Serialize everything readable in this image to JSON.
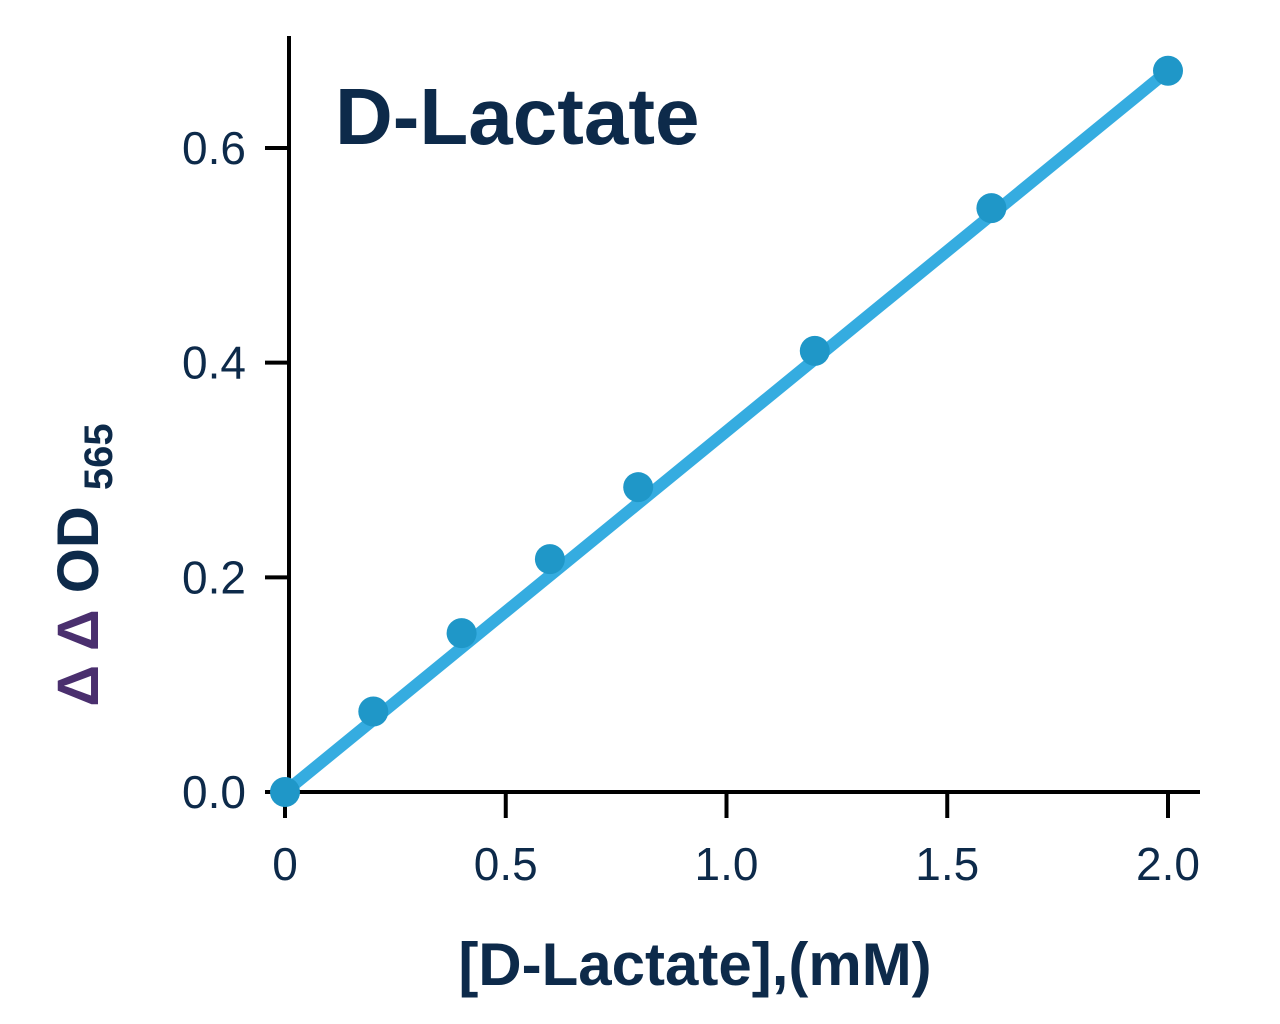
{
  "chart_data": {
    "type": "scatter",
    "title": "D-Lactate",
    "xlabel": "[D-Lactate],(mM)",
    "ylabel": {
      "delta1": "Δ",
      "delta2": "Δ",
      "main": "OD",
      "subscript": "565"
    },
    "xlim": [
      0,
      2.0
    ],
    "ylim": [
      0,
      0.7
    ],
    "x_ticks": [
      {
        "value": 0,
        "label": "0"
      },
      {
        "value": 0.5,
        "label": "0.5"
      },
      {
        "value": 1.0,
        "label": "1.0"
      },
      {
        "value": 1.5,
        "label": "1.5"
      },
      {
        "value": 2.0,
        "label": "2.0"
      }
    ],
    "y_ticks": [
      {
        "value": 0.0,
        "label": "0.0"
      },
      {
        "value": 0.2,
        "label": "0.2"
      },
      {
        "value": 0.4,
        "label": "0.4"
      },
      {
        "value": 0.6,
        "label": "0.6"
      }
    ],
    "series": [
      {
        "x": [
          0,
          0.2,
          0.4,
          0.6,
          0.8,
          1.2,
          1.6,
          2.0
        ],
        "y": [
          0.0,
          0.075,
          0.148,
          0.217,
          0.284,
          0.411,
          0.544,
          0.672
        ]
      }
    ],
    "fit_line": {
      "x": [
        0,
        2.0
      ],
      "y": [
        0.0,
        0.672
      ]
    },
    "grid": false,
    "colors": {
      "point": "#1f97c8",
      "line": "#35ace0",
      "axis": "#000000",
      "text": "#0d2a4a",
      "delta": "#4a2f6e"
    }
  }
}
